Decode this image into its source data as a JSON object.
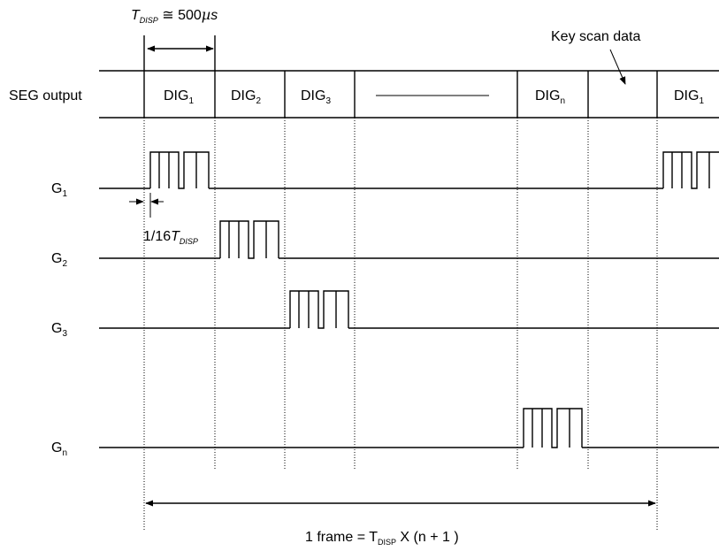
{
  "header": {
    "tdisp_symbol": "T",
    "tdisp_sub": "DISP",
    "tdisp_value": " ≅ 500",
    "tdisp_mu": "µ",
    "tdisp_unit": "s",
    "key_scan_label": "Key scan data"
  },
  "seg_row": {
    "label": "SEG output",
    "digits": [
      {
        "base": "DIG",
        "sub": "1"
      },
      {
        "base": "DIG",
        "sub": "2"
      },
      {
        "base": "DIG",
        "sub": "3"
      },
      {
        "base": "DIG",
        "sub": "n"
      },
      {
        "base": "DIG",
        "sub": "1"
      }
    ]
  },
  "grids": [
    {
      "base": "G",
      "sub": "1"
    },
    {
      "base": "G",
      "sub": "2"
    },
    {
      "base": "G",
      "sub": "3"
    },
    {
      "base": "G",
      "sub": "n"
    }
  ],
  "pulse_width": {
    "prefix": "1/16",
    "symbol": "T",
    "sub": "DISP"
  },
  "frame": {
    "prefix": "1 frame = T",
    "sub": "DISP",
    "suffix": " X (n + 1 )"
  }
}
